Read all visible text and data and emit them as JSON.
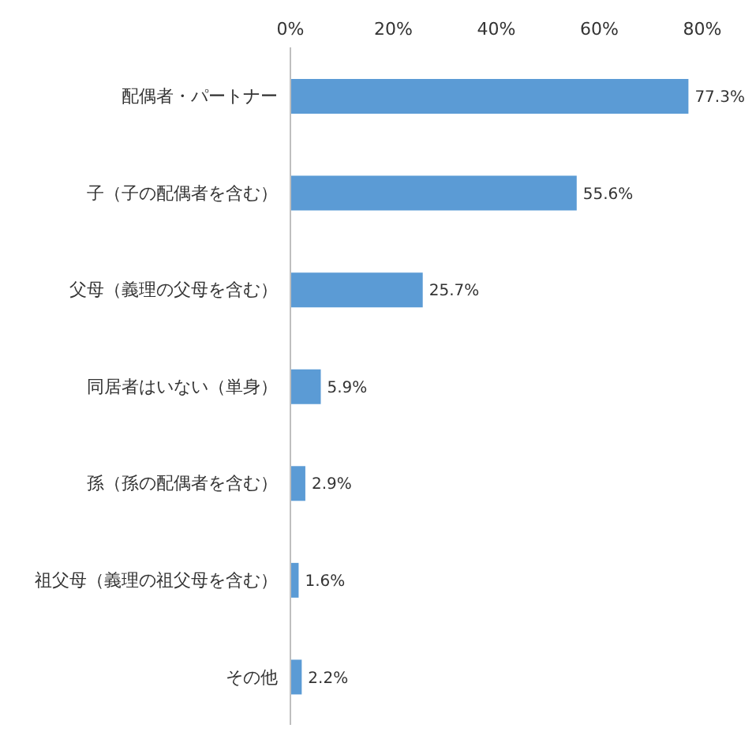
{
  "chart_data": {
    "type": "bar",
    "orientation": "horizontal",
    "categories": [
      "配偶者・パートナー",
      "子（子の配偶者を含む）",
      "父母（義理の父母を含む）",
      "同居者はいない（単身）",
      "孫（孫の配偶者を含む）",
      "祖父母（義理の祖父母を含む）",
      "その他"
    ],
    "values": [
      77.3,
      55.6,
      25.7,
      5.9,
      2.9,
      1.6,
      2.2
    ],
    "value_labels": [
      "77.3%",
      "55.6%",
      "25.7%",
      "5.9%",
      "2.9%",
      "1.6%",
      "2.2%"
    ],
    "color": "#5b9bd5",
    "xlim": [
      0,
      80
    ],
    "xticks": [
      {
        "value": 0,
        "label": "0%"
      },
      {
        "value": 20,
        "label": "20%"
      },
      {
        "value": 40,
        "label": "40%"
      },
      {
        "value": 60,
        "label": "60%"
      },
      {
        "value": 80,
        "label": "80%"
      }
    ],
    "grid": false,
    "legend": false
  }
}
